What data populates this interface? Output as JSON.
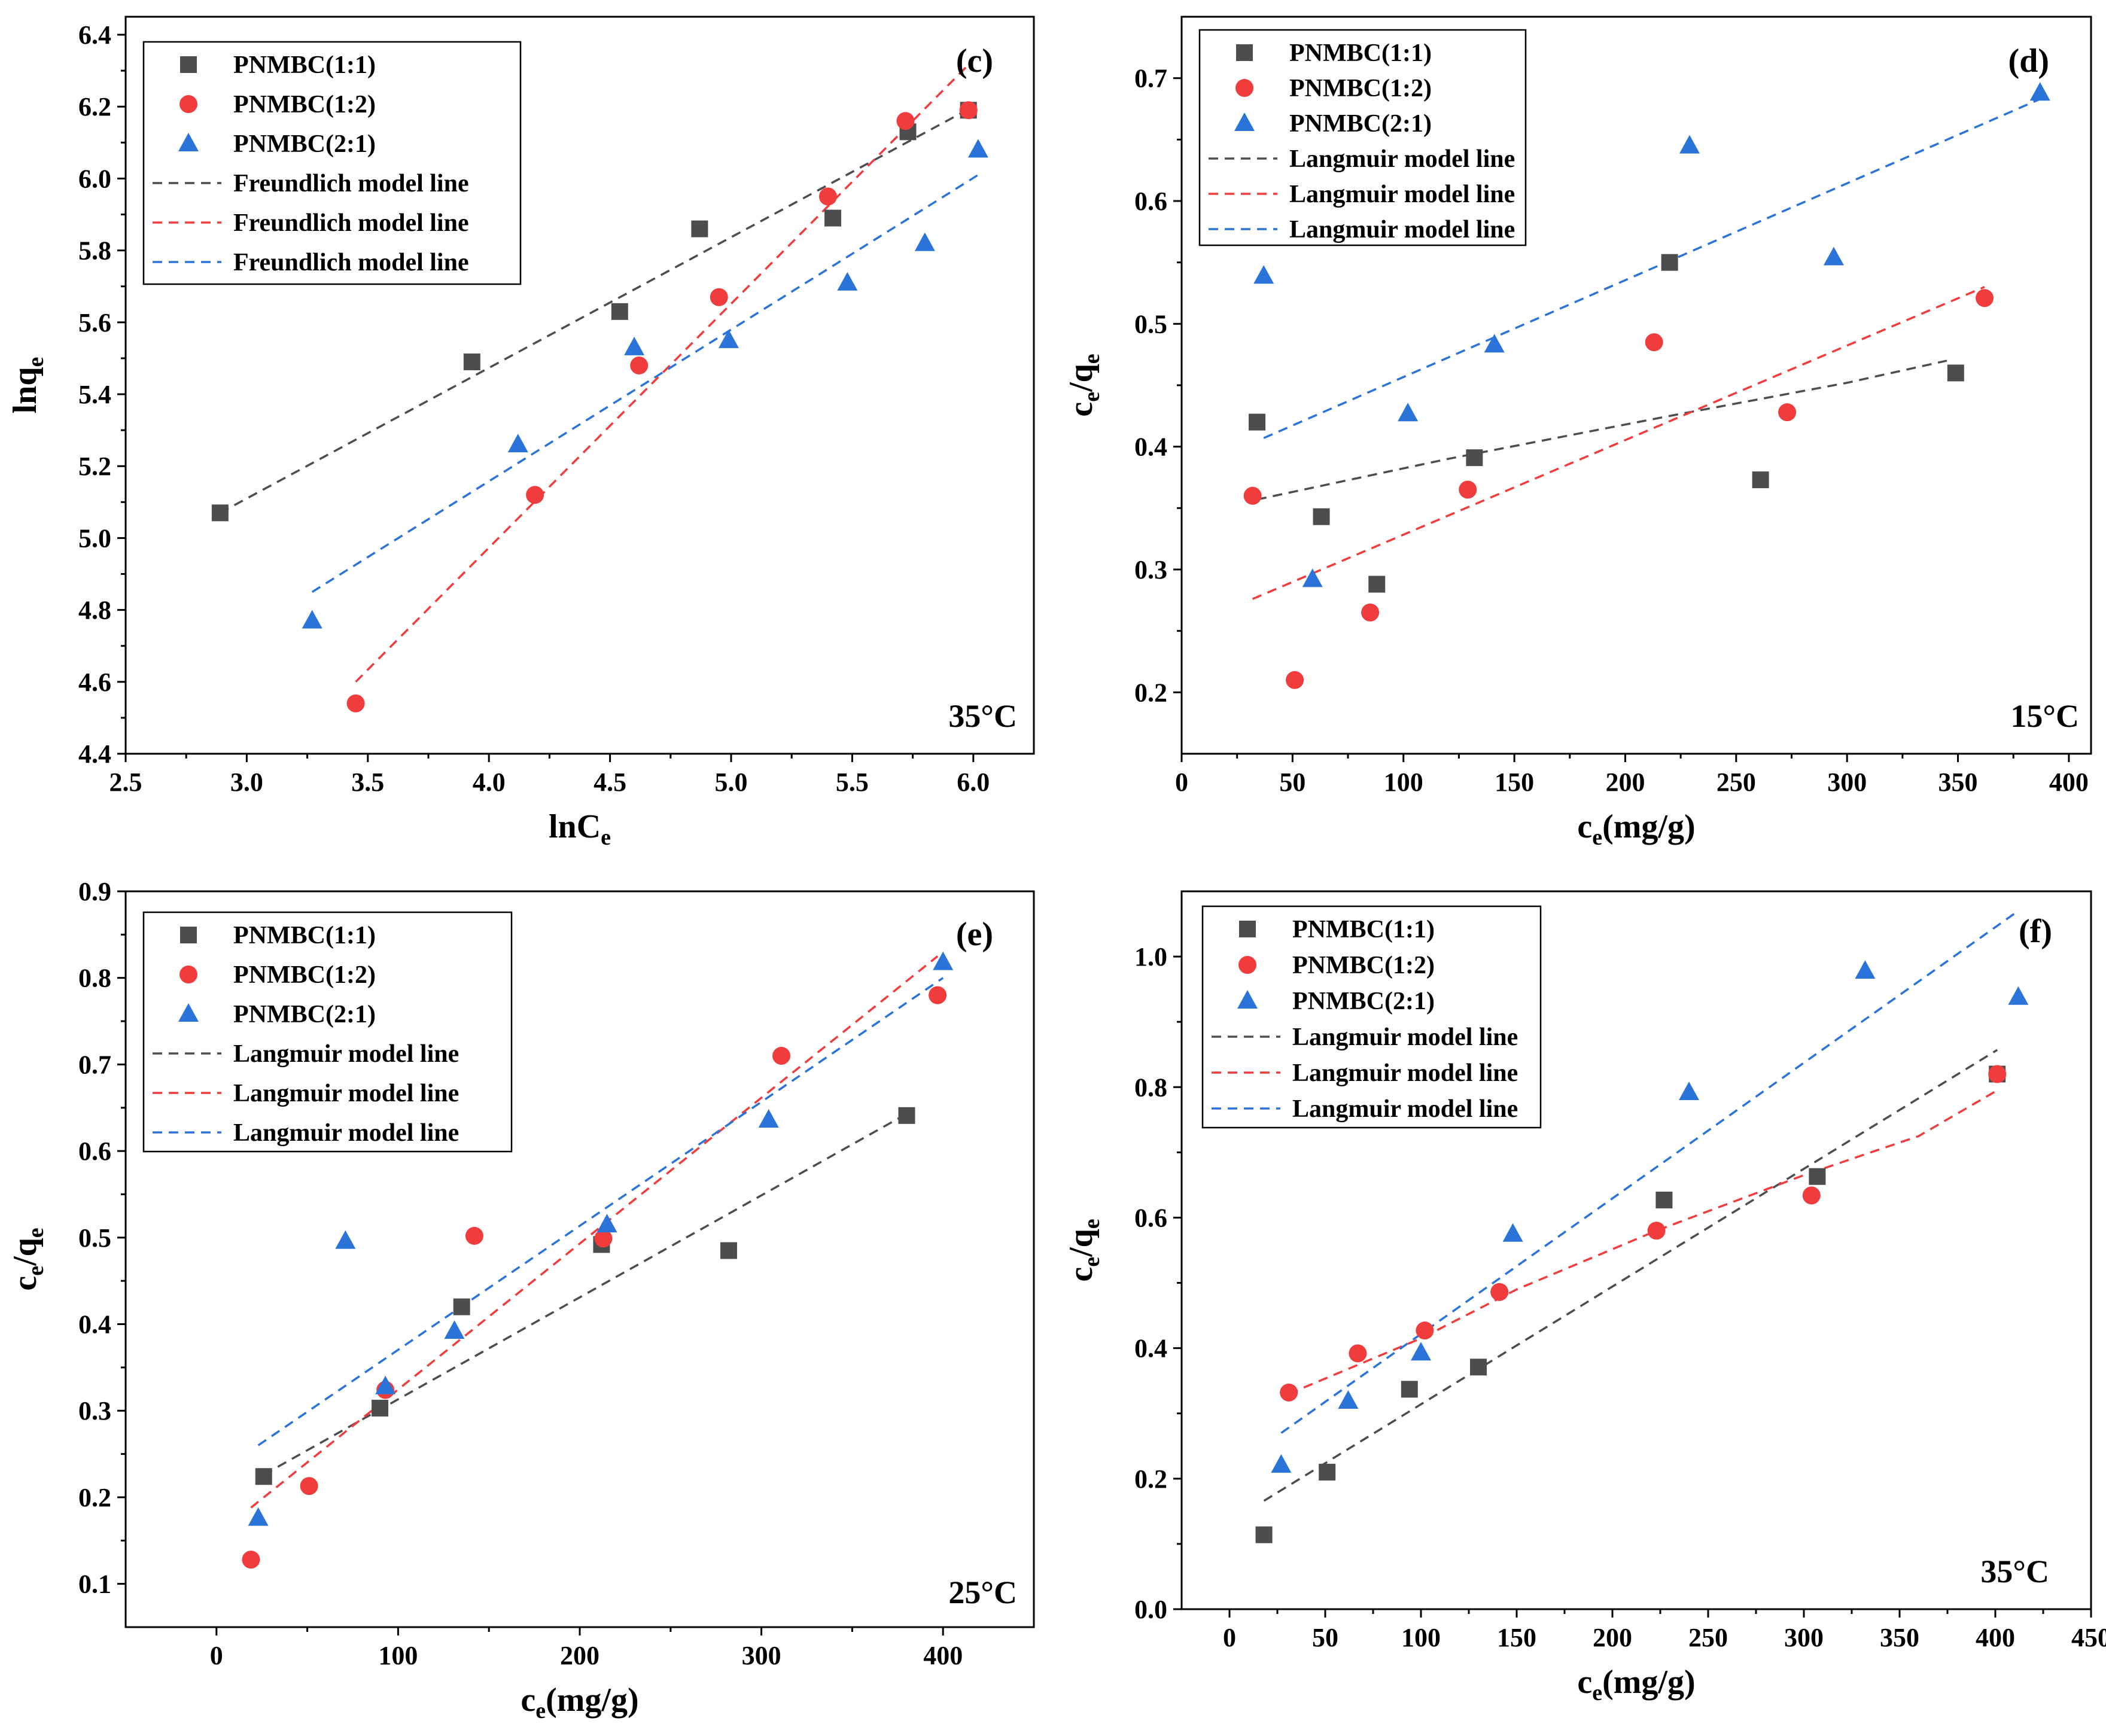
{
  "chart_data": [
    {
      "panel": "(c)",
      "type": "scatter",
      "annotation": "35°C",
      "xlabel": "lnC",
      "xlabel_sub": "e",
      "ylabel": "lnq",
      "ylabel_sub": "e",
      "xlim": [
        2.5,
        6.25
      ],
      "ylim": [
        4.4,
        6.45
      ],
      "xticks": [
        "2.5",
        "3.0",
        "3.5",
        "4.0",
        "4.5",
        "5.0",
        "5.5",
        "6.0"
      ],
      "yticks": [
        "4.4",
        "4.6",
        "4.8",
        "5.0",
        "5.2",
        "5.4",
        "5.6",
        "5.8",
        "6.0",
        "6.2",
        "6.4"
      ],
      "legend": {
        "position": "top-left",
        "entries": [
          {
            "label": "PNMBC(1:1)",
            "kind": "marker",
            "series": 0
          },
          {
            "label": "PNMBC(1:2)",
            "kind": "marker",
            "series": 1
          },
          {
            "label": "PNMBC(2:1)",
            "kind": "marker",
            "series": 2
          },
          {
            "label": "Freundlich model line",
            "kind": "line",
            "series": 0
          },
          {
            "label": "Freundlich model line",
            "kind": "line",
            "series": 1
          },
          {
            "label": "Freundlich model line",
            "kind": "line",
            "series": 2
          }
        ]
      },
      "series": [
        {
          "name": "PNMBC(1:1)",
          "marker": "square",
          "color": "#4d4d4d",
          "points": [
            [
              2.89,
              5.07
            ],
            [
              3.93,
              5.49
            ],
            [
              4.54,
              5.63
            ],
            [
              4.87,
              5.86
            ],
            [
              5.42,
              5.89
            ],
            [
              5.73,
              6.13
            ],
            [
              5.98,
              6.19
            ]
          ],
          "fit": [
            [
              2.89,
              5.07
            ],
            [
              6.0,
              6.2
            ]
          ]
        },
        {
          "name": "PNMBC(1:2)",
          "marker": "circle",
          "color": "#f03c3c",
          "points": [
            [
              3.45,
              4.54
            ],
            [
              4.19,
              5.12
            ],
            [
              4.62,
              5.48
            ],
            [
              4.95,
              5.67
            ],
            [
              5.4,
              5.95
            ],
            [
              5.72,
              6.16
            ],
            [
              5.98,
              6.19
            ]
          ],
          "fit": [
            [
              3.45,
              4.6
            ],
            [
              6.0,
              6.33
            ]
          ]
        },
        {
          "name": "PNMBC(2:1)",
          "marker": "triangle",
          "color": "#2a73d9",
          "points": [
            [
              3.27,
              4.77
            ],
            [
              4.12,
              5.26
            ],
            [
              4.6,
              5.53
            ],
            [
              4.99,
              5.55
            ],
            [
              5.48,
              5.71
            ],
            [
              5.8,
              5.82
            ],
            [
              6.02,
              6.08
            ]
          ],
          "fit": [
            [
              3.27,
              4.85
            ],
            [
              6.02,
              6.01
            ]
          ]
        }
      ]
    },
    {
      "panel": "(d)",
      "type": "scatter",
      "annotation": "15°C",
      "xlabel": "c",
      "xlabel_sub": "e",
      "xlabel_unit": "(mg/g)",
      "ylabel": "c",
      "ylabel_sub": "e",
      "ylabel_mid": "/q",
      "ylabel_sub2": "e",
      "xlim": [
        0,
        410
      ],
      "ylim": [
        0.15,
        0.75
      ],
      "xticks": [
        "0",
        "50",
        "100",
        "150",
        "200",
        "250",
        "300",
        "350",
        "400"
      ],
      "yticks": [
        "0.2",
        "0.3",
        "0.4",
        "0.5",
        "0.6",
        "0.7"
      ],
      "legend": {
        "position": "top-left",
        "entries": [
          {
            "label": "PNMBC(1:1)",
            "kind": "marker",
            "series": 0
          },
          {
            "label": "PNMBC(1:2)",
            "kind": "marker",
            "series": 1
          },
          {
            "label": "PNMBC(2:1)",
            "kind": "marker",
            "series": 2
          },
          {
            "label": "Langmuir model line",
            "kind": "line",
            "series": 0
          },
          {
            "label": "Langmuir model line",
            "kind": "line",
            "series": 1
          },
          {
            "label": "Langmuir model line",
            "kind": "line",
            "series": 2
          }
        ]
      },
      "series": [
        {
          "name": "PNMBC(1:1)",
          "marker": "square",
          "color": "#4d4d4d",
          "points": [
            [
              34,
              0.42
            ],
            [
              63,
              0.343
            ],
            [
              88,
              0.288
            ],
            [
              132,
              0.391
            ],
            [
              220,
              0.55
            ],
            [
              261,
              0.373
            ],
            [
              349,
              0.46
            ]
          ],
          "fit": [
            [
              34,
              0.357
            ],
            [
              120,
              0.39
            ],
            [
              220,
              0.425
            ],
            [
              300,
              0.452
            ],
            [
              345,
              0.47
            ]
          ]
        },
        {
          "name": "PNMBC(1:2)",
          "marker": "circle",
          "color": "#f03c3c",
          "points": [
            [
              32,
              0.36
            ],
            [
              51,
              0.21
            ],
            [
              85,
              0.265
            ],
            [
              129,
              0.365
            ],
            [
              213,
              0.485
            ],
            [
              273,
              0.428
            ],
            [
              362,
              0.521
            ]
          ],
          "fit": [
            [
              32,
              0.276
            ],
            [
              362,
              0.53
            ]
          ]
        },
        {
          "name": "PNMBC(2:1)",
          "marker": "triangle",
          "color": "#2a73d9",
          "points": [
            [
              37,
              0.539
            ],
            [
              59,
              0.292
            ],
            [
              102,
              0.427
            ],
            [
              141,
              0.483
            ],
            [
              229,
              0.645
            ],
            [
              294,
              0.554
            ],
            [
              387,
              0.688
            ]
          ],
          "fit": [
            [
              37,
              0.407
            ],
            [
              387,
              0.683
            ]
          ]
        }
      ]
    },
    {
      "panel": "(e)",
      "type": "scatter",
      "annotation": "25°C",
      "xlabel": "c",
      "xlabel_sub": "e",
      "xlabel_unit": "(mg/g)",
      "ylabel": "c",
      "ylabel_sub": "e",
      "ylabel_mid": "/q",
      "ylabel_sub2": "e",
      "xlim": [
        -50,
        450
      ],
      "ylim": [
        0.05,
        0.9
      ],
      "xticks": [
        "0",
        "100",
        "200",
        "300",
        "400"
      ],
      "yticks": [
        "0.1",
        "0.2",
        "0.3",
        "0.4",
        "0.5",
        "0.6",
        "0.7",
        "0.8",
        "0.9"
      ],
      "legend": {
        "position": "top-left",
        "entries": [
          {
            "label": "PNMBC(1:1)",
            "kind": "marker",
            "series": 0
          },
          {
            "label": "PNMBC(1:2)",
            "kind": "marker",
            "series": 1
          },
          {
            "label": "PNMBC(2:1)",
            "kind": "marker",
            "series": 2
          },
          {
            "label": "Langmuir model line",
            "kind": "line",
            "series": 0
          },
          {
            "label": "Langmuir model line",
            "kind": "line",
            "series": 1
          },
          {
            "label": "Langmuir model line",
            "kind": "line",
            "series": 2
          }
        ]
      },
      "series": [
        {
          "name": "PNMBC(1:1)",
          "marker": "square",
          "color": "#4d4d4d",
          "points": [
            [
              26,
              0.224
            ],
            [
              90,
              0.303
            ],
            [
              135,
              0.42
            ],
            [
              212,
              0.492
            ],
            [
              282,
              0.485
            ],
            [
              380,
              0.641
            ]
          ],
          "fit": [
            [
              26,
              0.226
            ],
            [
              380,
              0.643
            ]
          ]
        },
        {
          "name": "PNMBC(1:2)",
          "marker": "circle",
          "color": "#f03c3c",
          "points": [
            [
              19,
              0.128
            ],
            [
              51,
              0.213
            ],
            [
              93,
              0.324
            ],
            [
              142,
              0.502
            ],
            [
              213,
              0.499
            ],
            [
              311,
              0.71
            ],
            [
              397,
              0.78
            ]
          ],
          "fit": [
            [
              19,
              0.188
            ],
            [
              397,
              0.825
            ]
          ]
        },
        {
          "name": "PNMBC(2:1)",
          "marker": "triangle",
          "color": "#2a73d9",
          "points": [
            [
              23,
              0.176
            ],
            [
              71,
              0.496
            ],
            [
              93,
              0.328
            ],
            [
              131,
              0.392
            ],
            [
              215,
              0.515
            ],
            [
              304,
              0.636
            ],
            [
              400,
              0.818
            ]
          ],
          "fit": [
            [
              23,
              0.26
            ],
            [
              400,
              0.8
            ]
          ]
        }
      ]
    },
    {
      "panel": "(f)",
      "type": "scatter",
      "annotation": "35°C",
      "xlabel": "c",
      "xlabel_sub": "e",
      "xlabel_unit": "(mg/g)",
      "ylabel": "c",
      "ylabel_sub": "e",
      "ylabel_mid": "/q",
      "ylabel_sub2": "e",
      "xlim": [
        -25,
        450
      ],
      "ylim": [
        0.0,
        1.1
      ],
      "xticks": [
        "0",
        "50",
        "100",
        "150",
        "200",
        "250",
        "300",
        "350",
        "400",
        "450"
      ],
      "yticks": [
        "0.0",
        "0.2",
        "0.4",
        "0.6",
        "0.8",
        "1.0"
      ],
      "legend": {
        "position": "top-left",
        "entries": [
          {
            "label": "PNMBC(1:1)",
            "kind": "marker",
            "series": 0
          },
          {
            "label": "PNMBC(1:2)",
            "kind": "marker",
            "series": 1
          },
          {
            "label": "PNMBC(2:1)",
            "kind": "marker",
            "series": 2
          },
          {
            "label": "Langmuir model line",
            "kind": "line",
            "series": 0
          },
          {
            "label": "Langmuir model line",
            "kind": "line",
            "series": 1
          },
          {
            "label": "Langmuir model line",
            "kind": "line",
            "series": 2
          }
        ]
      },
      "series": [
        {
          "name": "PNMBC(1:1)",
          "marker": "square",
          "color": "#4d4d4d",
          "points": [
            [
              18,
              0.114
            ],
            [
              51,
              0.21
            ],
            [
              94,
              0.337
            ],
            [
              130,
              0.371
            ],
            [
              227,
              0.627
            ],
            [
              307,
              0.663
            ],
            [
              401,
              0.82
            ]
          ],
          "fit": [
            [
              18,
              0.166
            ],
            [
              401,
              0.857
            ]
          ]
        },
        {
          "name": "PNMBC(1:2)",
          "marker": "circle",
          "color": "#f03c3c",
          "points": [
            [
              31,
              0.332
            ],
            [
              67,
              0.392
            ],
            [
              102,
              0.427
            ],
            [
              141,
              0.486
            ],
            [
              223,
              0.58
            ],
            [
              304,
              0.634
            ],
            [
              401,
              0.82
            ]
          ],
          "fit": [
            [
              31,
              0.33
            ],
            [
              100,
              0.415
            ],
            [
              150,
              0.49
            ],
            [
              223,
              0.58
            ],
            [
              300,
              0.665
            ],
            [
              360,
              0.725
            ],
            [
              401,
              0.795
            ]
          ]
        },
        {
          "name": "PNMBC(2:1)",
          "marker": "triangle",
          "color": "#2a73d9",
          "points": [
            [
              27,
              0.221
            ],
            [
              62,
              0.319
            ],
            [
              100,
              0.393
            ],
            [
              148,
              0.575
            ],
            [
              240,
              0.792
            ],
            [
              332,
              0.978
            ],
            [
              412,
              0.938
            ]
          ],
          "fit": [
            [
              27,
              0.27
            ],
            [
              412,
              1.07
            ]
          ]
        }
      ]
    }
  ]
}
